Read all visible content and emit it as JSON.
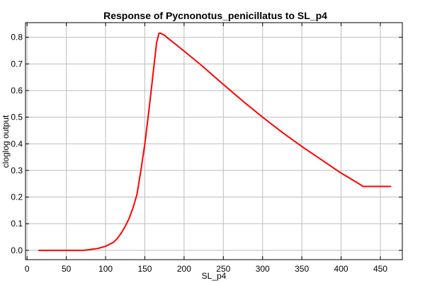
{
  "chart_data": {
    "type": "line",
    "title": "Response of Pycnonotus_penicillatus to SL_p4",
    "xlabel": "SL_p4",
    "ylabel": "cloglog output",
    "xlim": [
      -2,
      478
    ],
    "ylim": [
      -0.035,
      0.855
    ],
    "xticks": [
      0,
      50,
      100,
      150,
      200,
      250,
      300,
      350,
      400,
      450
    ],
    "yticks": [
      0.0,
      0.1,
      0.2,
      0.3,
      0.4,
      0.5,
      0.6,
      0.7,
      0.8
    ],
    "xtick_labels": [
      "0",
      "50",
      "100",
      "150",
      "200",
      "250",
      "300",
      "350",
      "400",
      "450"
    ],
    "ytick_labels": [
      "0.0",
      "0.1",
      "0.2",
      "0.3",
      "0.4",
      "0.5",
      "0.6",
      "0.7",
      "0.8"
    ],
    "grid": true,
    "series": [
      {
        "color": "#ff0000",
        "x": [
          15,
          40,
          72,
          80,
          90,
          100,
          110,
          115,
          120,
          125,
          130,
          135,
          140,
          145,
          150,
          155,
          160,
          165,
          168,
          170,
          175,
          180,
          190,
          200,
          220,
          250,
          275,
          300,
          325,
          350,
          375,
          400,
          420,
          428,
          440,
          463
        ],
        "y": [
          0.0,
          0.0,
          0.0,
          0.003,
          0.007,
          0.015,
          0.03,
          0.045,
          0.065,
          0.09,
          0.12,
          0.16,
          0.21,
          0.3,
          0.4,
          0.52,
          0.65,
          0.78,
          0.815,
          0.815,
          0.808,
          0.795,
          0.772,
          0.748,
          0.7,
          0.623,
          0.56,
          0.5,
          0.443,
          0.39,
          0.34,
          0.29,
          0.255,
          0.24,
          0.24,
          0.24
        ]
      }
    ]
  }
}
